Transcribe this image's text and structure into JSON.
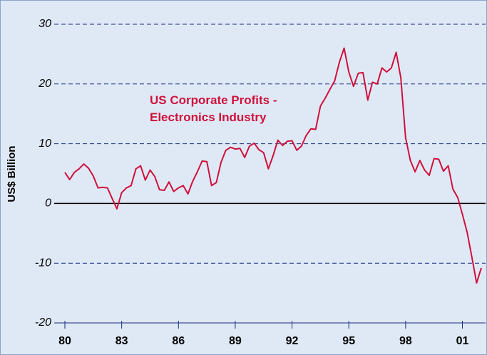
{
  "chart_data": {
    "type": "line",
    "annotation": "US Corporate Profits -\nElectronics Industry",
    "y_label": "US$ Billion",
    "x": [
      1980,
      1980.25,
      1980.5,
      1980.75,
      1981,
      1981.25,
      1981.5,
      1981.75,
      1982,
      1982.25,
      1982.5,
      1982.75,
      1983,
      1983.25,
      1983.5,
      1983.75,
      1984,
      1984.25,
      1984.5,
      1984.75,
      1985,
      1985.25,
      1985.5,
      1985.75,
      1986,
      1986.25,
      1986.5,
      1986.75,
      1987,
      1987.25,
      1987.5,
      1987.75,
      1988,
      1988.25,
      1988.5,
      1988.75,
      1989,
      1989.25,
      1989.5,
      1989.75,
      1990,
      1990.25,
      1990.5,
      1990.75,
      1991,
      1991.25,
      1991.5,
      1991.75,
      1992,
      1992.25,
      1992.5,
      1992.75,
      1993,
      1993.25,
      1993.5,
      1993.75,
      1994,
      1994.25,
      1994.5,
      1994.75,
      1995,
      1995.25,
      1995.5,
      1995.75,
      1996,
      1996.25,
      1996.5,
      1996.75,
      1997,
      1997.25,
      1997.5,
      1997.75,
      1998,
      1998.25,
      1998.5,
      1998.75,
      1999,
      1999.25,
      1999.5,
      1999.75,
      2000,
      2000.25,
      2000.5,
      2000.75,
      2001,
      2001.25,
      2001.5,
      2001.75,
      2002
    ],
    "series": [
      {
        "name": "US Corporate Profits - Electronics Industry",
        "color": "#d0103a",
        "values": [
          5.2,
          4.0,
          5.2,
          5.8,
          6.6,
          5.9,
          4.6,
          2.6,
          2.7,
          2.6,
          0.8,
          -0.9,
          1.8,
          2.6,
          3.0,
          5.8,
          6.3,
          3.9,
          5.6,
          4.5,
          2.3,
          2.2,
          3.6,
          2.0,
          2.6,
          3.0,
          1.6,
          3.7,
          5.3,
          7.1,
          7.0,
          3.0,
          3.5,
          6.9,
          8.9,
          9.4,
          9.1,
          9.2,
          7.7,
          9.6,
          10.1,
          9.0,
          8.5,
          5.8,
          8.0,
          10.6,
          9.7,
          10.4,
          10.5,
          8.9,
          9.6,
          11.4,
          12.5,
          12.4,
          16.3,
          17.6,
          19.1,
          20.5,
          23.6,
          26.0,
          22.0,
          19.6,
          21.8,
          21.9,
          17.3,
          20.3,
          20.0,
          22.7,
          22.0,
          22.7,
          25.3,
          21.0,
          11.0,
          7.2,
          5.3,
          7.2,
          5.6,
          4.7,
          7.5,
          7.4,
          5.4,
          6.3,
          2.4,
          1.0,
          -1.8,
          -4.8,
          -9.0,
          -13.3,
          -10.8
        ]
      }
    ],
    "xlim": [
      1980,
      2002.3
    ],
    "xticks": [
      {
        "value": 1980,
        "label": "80"
      },
      {
        "value": 1983,
        "label": "83"
      },
      {
        "value": 1986,
        "label": "86"
      },
      {
        "value": 1989,
        "label": "89"
      },
      {
        "value": 1992,
        "label": "92"
      },
      {
        "value": 1995,
        "label": "95"
      },
      {
        "value": 1998,
        "label": "98"
      },
      {
        "value": 2001,
        "label": "01"
      }
    ],
    "ylim": [
      -20,
      30
    ],
    "yticks": [
      -20,
      -10,
      0,
      10,
      20,
      30
    ],
    "grid": true
  }
}
